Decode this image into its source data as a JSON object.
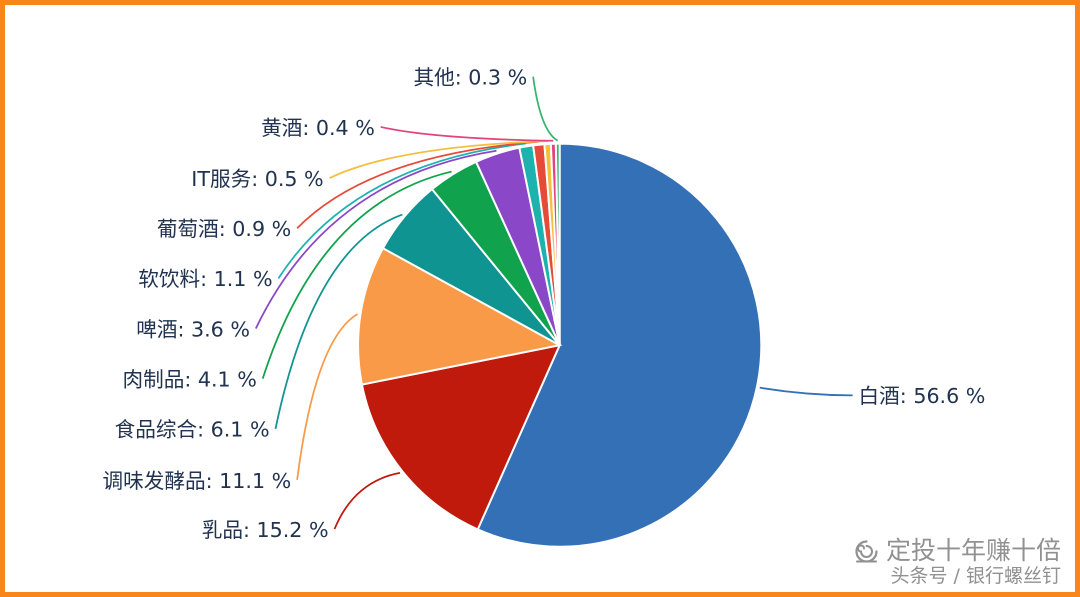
{
  "page": {
    "border_color": "#f8861b",
    "background": "#ffffff"
  },
  "watermark": {
    "line1": "定投十年赚十倍",
    "line2": "头条号 / 银行螺丝钉",
    "color": "#919191"
  },
  "chart_data": {
    "type": "pie",
    "title": "",
    "unit": "%",
    "start_angle": "12-oclock",
    "direction": "clockwise",
    "legend": "none",
    "label_format": "{label}: {value} %",
    "label_color": "#213350",
    "slice_stroke": "#ffffff",
    "slices": [
      {
        "label": "白酒",
        "value": 56.6,
        "color": "#3470b6"
      },
      {
        "label": "乳品",
        "value": 15.2,
        "color": "#bf1a0b"
      },
      {
        "label": "调味发酵品",
        "value": 11.1,
        "color": "#f99a49"
      },
      {
        "label": "食品综合",
        "value": 6.1,
        "color": "#0f9491"
      },
      {
        "label": "肉制品",
        "value": 4.1,
        "color": "#10a24d"
      },
      {
        "label": "啤酒",
        "value": 3.6,
        "color": "#8a48c8"
      },
      {
        "label": "软饮料",
        "value": 1.1,
        "color": "#1cb2ae"
      },
      {
        "label": "葡萄酒",
        "value": 0.9,
        "color": "#e54b39"
      },
      {
        "label": "IT服务",
        "value": 0.5,
        "color": "#f5bf3e"
      },
      {
        "label": "黄酒",
        "value": 0.4,
        "color": "#e2457e"
      },
      {
        "label": "其他",
        "value": 0.3,
        "color": "#38b471"
      }
    ]
  }
}
